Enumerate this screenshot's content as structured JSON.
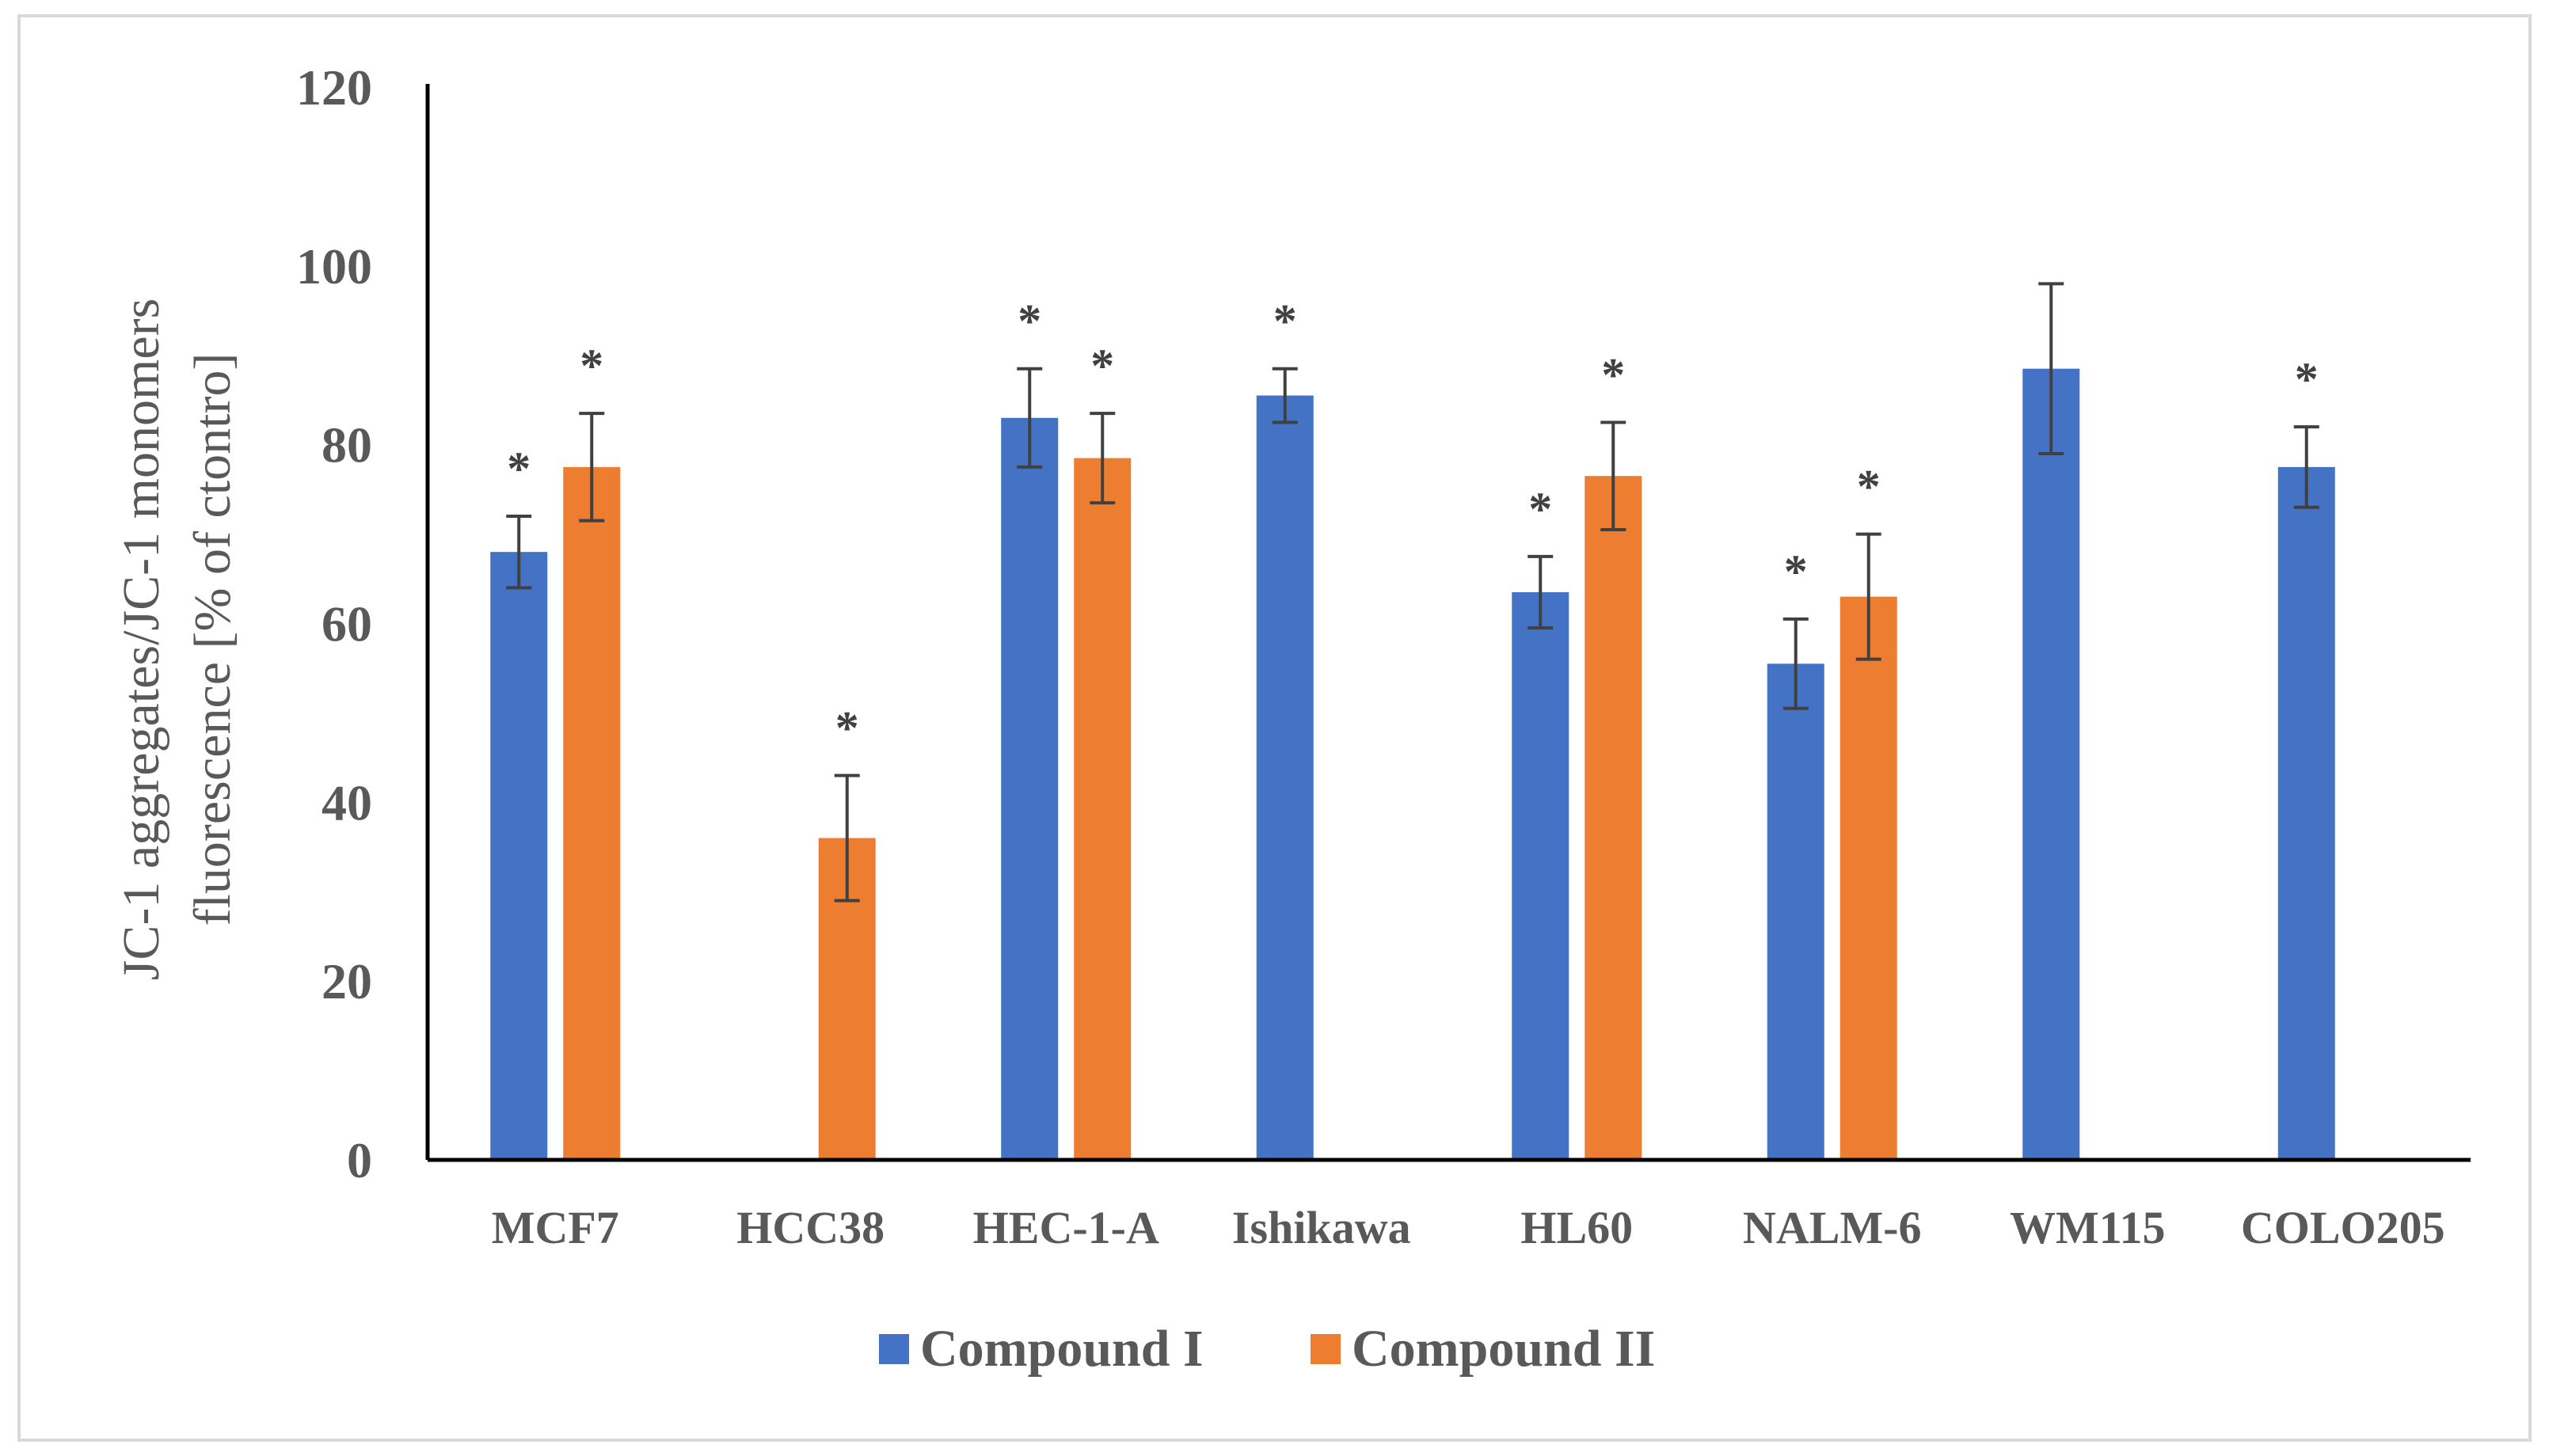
{
  "chart_data": {
    "type": "bar",
    "title": "",
    "xlabel": "",
    "ylabel": [
      "JC-1 aggregates/JC-1 monomers",
      "fluorescence [% of ctontro]"
    ],
    "ylim": [
      0,
      120
    ],
    "yticks": [
      0,
      20,
      40,
      60,
      80,
      100,
      120
    ],
    "grid": false,
    "legend_position": "bottom",
    "categories": [
      "MCF7",
      "HCC38",
      "HEC-1-A",
      "Ishikawa",
      "HL60",
      "NALM-6",
      "WM115",
      "COLO205"
    ],
    "category_labels": [
      "MCF7",
      "HCC38",
      "HEC-1-A",
      "Ishikawa",
      "HL60",
      "NALM-6",
      "WM115",
      "COLO205"
    ],
    "significance_marker": "*",
    "series": [
      {
        "name": "Compound I",
        "color": "#4472C4",
        "values": [
          68,
          null,
          83,
          85.5,
          63.5,
          55.5,
          88.5,
          77.5
        ],
        "errors": [
          4,
          null,
          5.5,
          3,
          4,
          5,
          9.5,
          4.5
        ],
        "significant": [
          true,
          false,
          true,
          true,
          true,
          true,
          false,
          true
        ]
      },
      {
        "name": "Compound II",
        "color": "#ED7D31",
        "values": [
          77.5,
          36,
          78.5,
          null,
          76.5,
          63,
          null,
          null
        ],
        "errors": [
          6,
          7,
          5,
          null,
          6,
          7,
          null,
          null
        ],
        "significant": [
          true,
          true,
          true,
          false,
          true,
          true,
          false,
          false
        ]
      }
    ]
  }
}
